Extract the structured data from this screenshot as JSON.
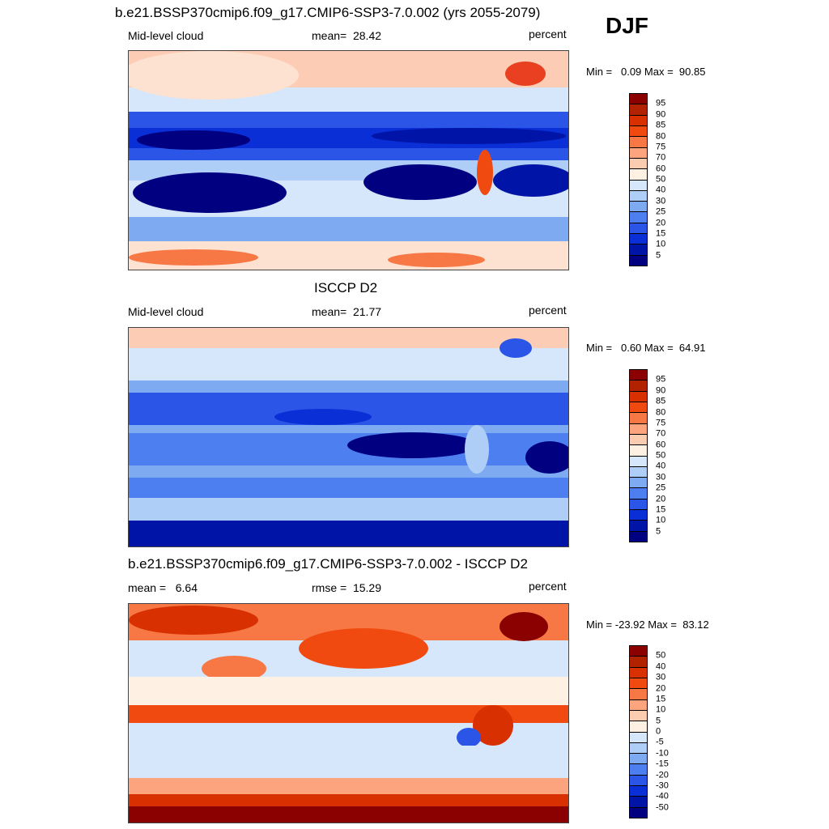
{
  "season": "DJF",
  "panels": [
    {
      "title": "b.e21.BSSP370cmip6.f09_g17.CMIP6-SSP3-7.0.002 (yrs 2055-2079)",
      "left_label": "Mid-level cloud",
      "center_label": "mean=  28.42",
      "units": "percent",
      "minmax": "Min =   0.09 Max =  90.85",
      "levels": [
        "95",
        "90",
        "85",
        "80",
        "75",
        "70",
        "60",
        "50",
        "40",
        "30",
        "25",
        "20",
        "15",
        "10",
        "5"
      ],
      "colors": [
        "#8b0000",
        "#b22200",
        "#d83000",
        "#f04a10",
        "#f77845",
        "#fba47e",
        "#fcccb0",
        "#fff0e4",
        "#d6e6fb",
        "#aecdf7",
        "#7eaaf2",
        "#4d7ff0",
        "#2a55e6",
        "#0a2fd6",
        "#0015a8",
        "#000080"
      ]
    },
    {
      "title": "ISCCP D2",
      "left_label": "Mid-level cloud",
      "center_label": "mean=  21.77",
      "units": "percent",
      "minmax": "Min =   0.60 Max =  64.91",
      "levels": [
        "95",
        "90",
        "85",
        "80",
        "75",
        "70",
        "60",
        "50",
        "40",
        "30",
        "25",
        "20",
        "15",
        "10",
        "5"
      ],
      "colors": [
        "#8b0000",
        "#b22200",
        "#d83000",
        "#f04a10",
        "#f77845",
        "#fba47e",
        "#fcccb0",
        "#fff0e4",
        "#d6e6fb",
        "#aecdf7",
        "#7eaaf2",
        "#4d7ff0",
        "#2a55e6",
        "#0a2fd6",
        "#0015a8",
        "#000080"
      ]
    },
    {
      "title": "b.e21.BSSP370cmip6.f09_g17.CMIP6-SSP3-7.0.002 - ISCCP D2",
      "left_label": "mean =   6.64",
      "center_label": "rmse =  15.29",
      "units": "percent",
      "minmax": "Min = -23.92 Max =  83.12",
      "levels": [
        "50",
        "40",
        "30",
        "20",
        "15",
        "10",
        "5",
        "0",
        "-5",
        "-10",
        "-15",
        "-20",
        "-30",
        "-40",
        "-50"
      ],
      "colors": [
        "#8b0000",
        "#b22200",
        "#d83000",
        "#f04a10",
        "#f77845",
        "#fba47e",
        "#fcccb0",
        "#fff0e4",
        "#d6e6fb",
        "#aecdf7",
        "#7eaaf2",
        "#4d7ff0",
        "#2a55e6",
        "#0a2fd6",
        "#0015a8",
        "#000080"
      ]
    }
  ]
}
